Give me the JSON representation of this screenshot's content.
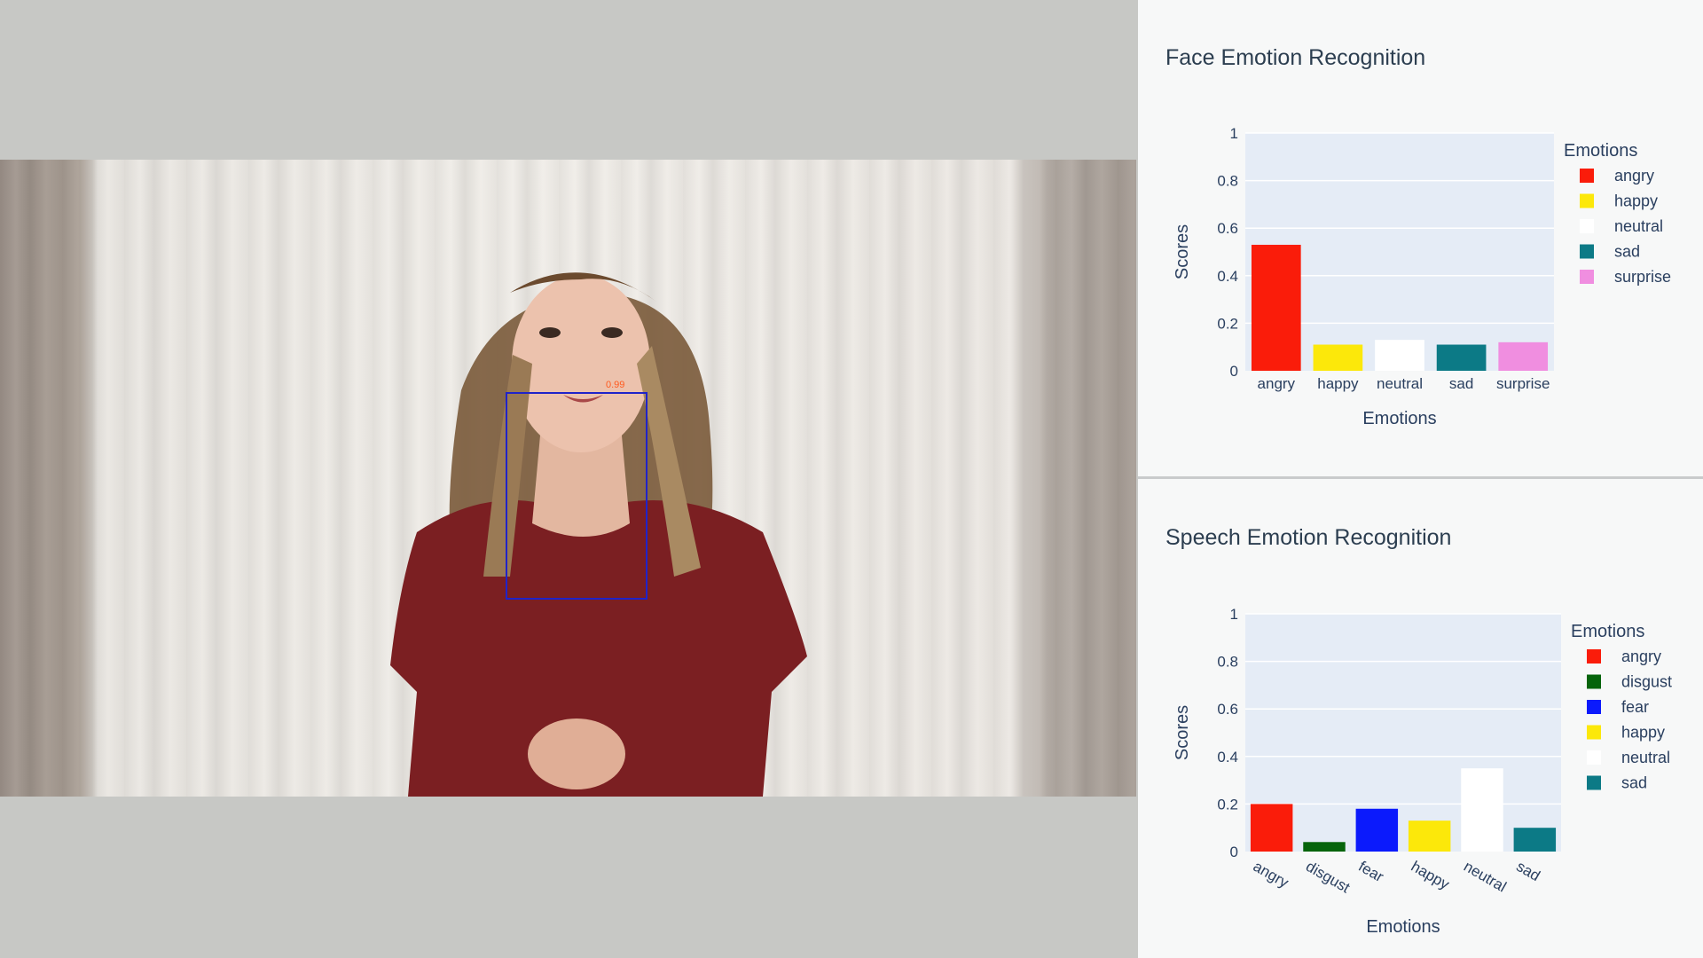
{
  "video": {
    "face_box_label": "0.99"
  },
  "chart_data": [
    {
      "type": "bar",
      "title": "Face Emotion Recognition",
      "xlabel": "Emotions",
      "ylabel": "Scores",
      "ylim": [
        0,
        1
      ],
      "yticks": [
        "0",
        "0.2",
        "0.4",
        "0.6",
        "0.8",
        "1"
      ],
      "categories": [
        "angry",
        "happy",
        "neutral",
        "sad",
        "surprise"
      ],
      "values": [
        0.53,
        0.11,
        0.13,
        0.11,
        0.12
      ],
      "colors": [
        "#fa1c0a",
        "#fce80a",
        "#ffffff",
        "#0c7a86",
        "#f08ee0"
      ],
      "legend_title": "Emotions",
      "legend": [
        "angry",
        "happy",
        "neutral",
        "sad",
        "surprise"
      ],
      "legend_position": "right",
      "grid": true
    },
    {
      "type": "bar",
      "title": "Speech Emotion Recognition",
      "xlabel": "Emotions",
      "ylabel": "Scores",
      "ylim": [
        0,
        1
      ],
      "yticks": [
        "0",
        "0.2",
        "0.4",
        "0.6",
        "0.8",
        "1"
      ],
      "categories": [
        "angry",
        "disgust",
        "fear",
        "happy",
        "neutral",
        "sad"
      ],
      "values": [
        0.2,
        0.04,
        0.18,
        0.13,
        0.35,
        0.1
      ],
      "colors": [
        "#fa1c0a",
        "#05640b",
        "#0b1afc",
        "#fce80a",
        "#ffffff",
        "#0c7a86"
      ],
      "legend_title": "Emotions",
      "legend": [
        "angry",
        "disgust",
        "fear",
        "happy",
        "neutral",
        "sad"
      ],
      "legend_position": "right",
      "grid": true,
      "rotated_tick_labels": true
    }
  ]
}
